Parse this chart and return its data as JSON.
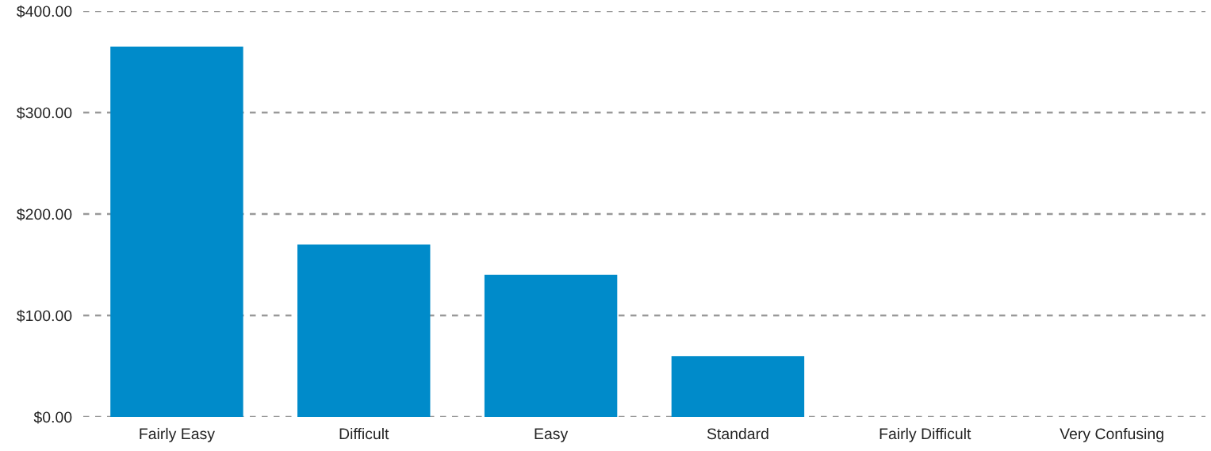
{
  "chart_data": {
    "type": "bar",
    "categories": [
      "Fairly Easy",
      "Difficult",
      "Easy",
      "Standard",
      "Fairly Difficult",
      "Very Confusing"
    ],
    "values": [
      365,
      170,
      140,
      60,
      0,
      0
    ],
    "color": "#008bca",
    "ylim": [
      0,
      400
    ],
    "yticks": [
      {
        "value": 0,
        "label": "$0.00"
      },
      {
        "value": 100,
        "label": "$100.00"
      },
      {
        "value": 200,
        "label": "$200.00"
      },
      {
        "value": 300,
        "label": "$300.00"
      },
      {
        "value": 400,
        "label": "$400.00"
      }
    ],
    "grid": "y",
    "line_style": "dashed"
  }
}
